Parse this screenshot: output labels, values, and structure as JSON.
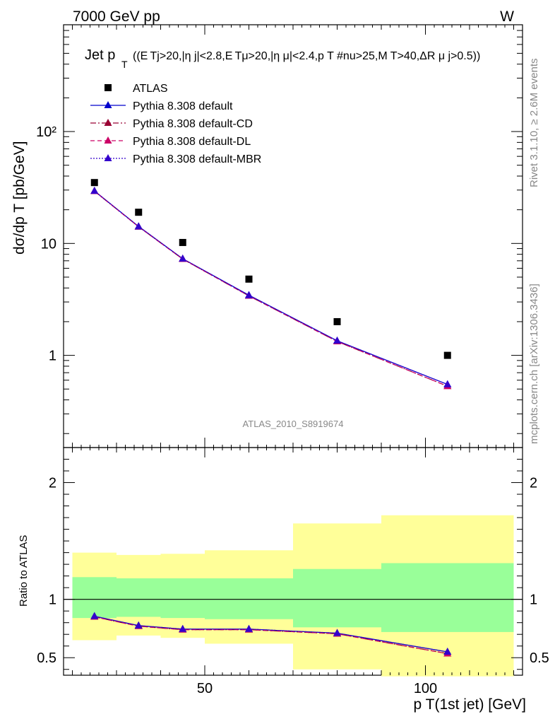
{
  "header": {
    "energy": "7000 GeV pp",
    "process": "W"
  },
  "side_text": {
    "rivet": "Rivet 3.1.10, ≥ 2.6M events",
    "source": "mcplots.cern.ch [arXiv:1306.3436]"
  },
  "chart_data": [
    {
      "type": "scatter",
      "title_main": "Jet p",
      "title_sub": "T",
      "title_cuts": "((E Tj>20,|η j|<2.8,E Tμ>20,|η μ|<2.4,p T #nu>25,M T>40,ΔR μ j>0.5))",
      "ylabel": "dσ/dp T [pb/GeV]",
      "xlabel": "",
      "yscale": "log",
      "ylim": [
        0.15,
        900
      ],
      "xlim": [
        18,
        122
      ],
      "analysis_id": "ATLAS_2010_S8919674",
      "y_tick_labels": [
        "1",
        "10",
        "10²"
      ],
      "legend_position": "top-left",
      "x": [
        25,
        35,
        45,
        60,
        80,
        105
      ],
      "series": [
        {
          "name": "ATLAS",
          "style": "square",
          "color": "#000000",
          "values": [
            35,
            19,
            10.2,
            4.8,
            2.0,
            1.0
          ]
        },
        {
          "name": "Pythia 8.308 default",
          "style": "solid",
          "color": "#0000cc",
          "values": [
            29.5,
            14.2,
            7.3,
            3.45,
            1.35,
            0.55
          ]
        },
        {
          "name": "Pythia 8.308 default-CD",
          "style": "dashdot",
          "color": "#990033",
          "values": [
            29.3,
            14.1,
            7.25,
            3.4,
            1.33,
            0.53
          ]
        },
        {
          "name": "Pythia 8.308 default-DL",
          "style": "dashed",
          "color": "#cc0066",
          "values": [
            29.3,
            14.1,
            7.25,
            3.4,
            1.33,
            0.53
          ]
        },
        {
          "name": "Pythia 8.308 default-MBR",
          "style": "dotted",
          "color": "#3300cc",
          "values": [
            29.4,
            14.15,
            7.3,
            3.43,
            1.35,
            0.55
          ]
        }
      ]
    },
    {
      "type": "line",
      "ylabel": "Ratio to ATLAS",
      "xlabel": "p T(1st jet) [GeV]",
      "ylim": [
        0.35,
        2.3
      ],
      "xlim": [
        18,
        122
      ],
      "y_tick_labels": [
        "0.5",
        "1",
        "2"
      ],
      "y_tick_values": [
        0.5,
        1,
        2
      ],
      "x_tick_labels": [
        "50",
        "100"
      ],
      "x_tick_values": [
        50,
        100
      ],
      "bins": [
        [
          20,
          30
        ],
        [
          30,
          40
        ],
        [
          40,
          50
        ],
        [
          50,
          70
        ],
        [
          70,
          90
        ],
        [
          90,
          120
        ]
      ],
      "band_stat": [
        [
          0.84,
          1.19
        ],
        [
          0.85,
          1.18
        ],
        [
          0.84,
          1.18
        ],
        [
          0.83,
          1.18
        ],
        [
          0.76,
          1.26
        ],
        [
          0.72,
          1.31
        ]
      ],
      "band_total": [
        [
          0.65,
          1.4
        ],
        [
          0.69,
          1.38
        ],
        [
          0.67,
          1.39
        ],
        [
          0.62,
          1.42
        ],
        [
          0.4,
          1.65
        ],
        [
          0.34,
          1.72
        ]
      ],
      "x": [
        25,
        35,
        45,
        60,
        80,
        105
      ],
      "series": [
        {
          "name": "Pythia 8.308 default",
          "color": "#0000cc",
          "style": "solid",
          "values": [
            0.855,
            0.775,
            0.745,
            0.745,
            0.71,
            0.55
          ]
        },
        {
          "name": "Pythia 8.308 default-CD",
          "color": "#990033",
          "style": "dashdot",
          "values": [
            0.85,
            0.77,
            0.74,
            0.74,
            0.705,
            0.535
          ]
        },
        {
          "name": "Pythia 8.308 default-DL",
          "color": "#cc0066",
          "style": "dashed",
          "values": [
            0.85,
            0.77,
            0.74,
            0.74,
            0.705,
            0.535
          ]
        },
        {
          "name": "Pythia 8.308 default-MBR",
          "color": "#3300cc",
          "style": "dotted",
          "values": [
            0.855,
            0.775,
            0.745,
            0.745,
            0.71,
            0.55
          ]
        }
      ]
    }
  ]
}
